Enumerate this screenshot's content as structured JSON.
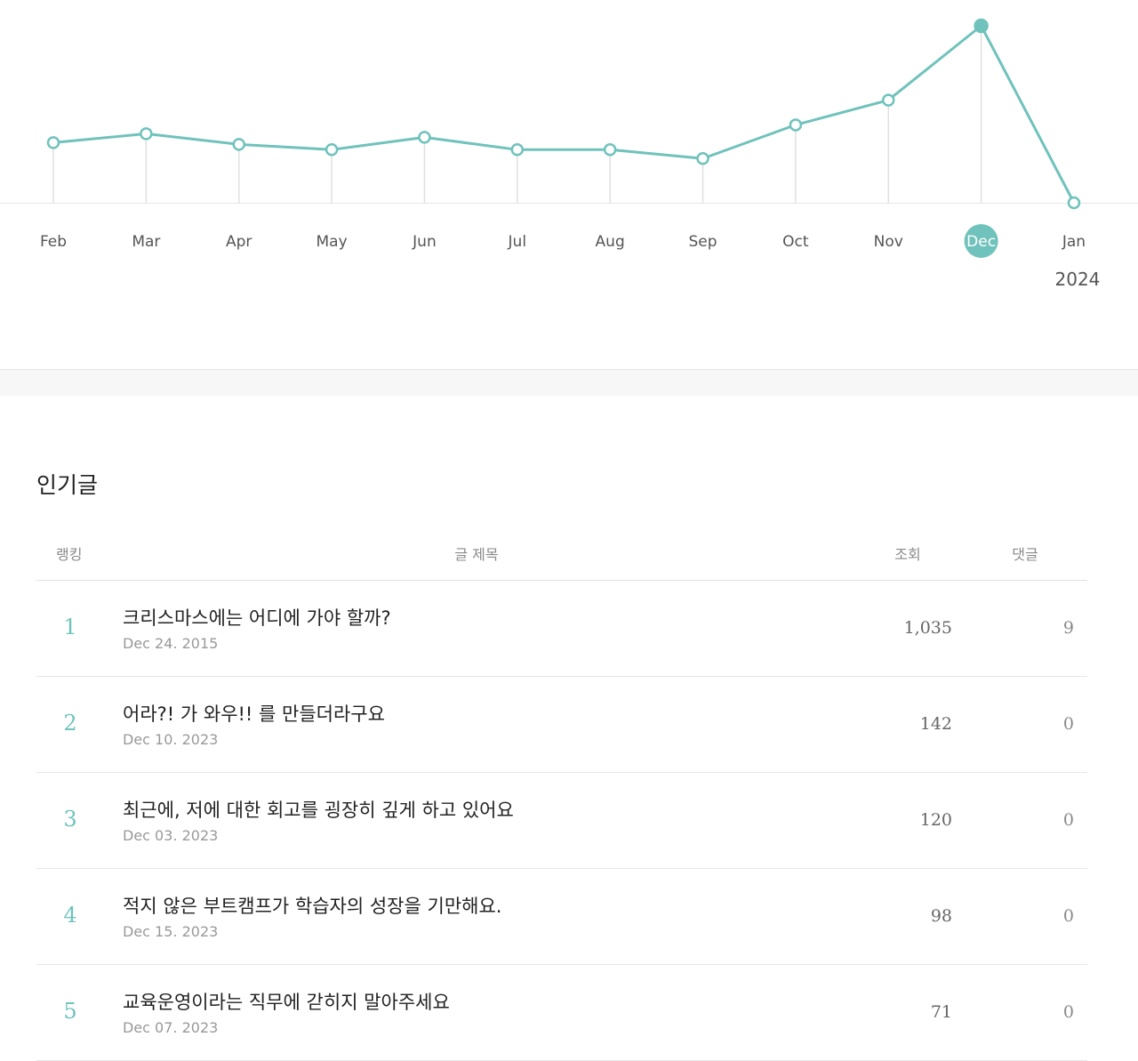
{
  "chart_data": {
    "type": "line",
    "categories": [
      "Feb",
      "Mar",
      "Apr",
      "May",
      "Jun",
      "Jul",
      "Aug",
      "Sep",
      "Oct",
      "Nov",
      "Dec",
      "Jan"
    ],
    "values": [
      34,
      39,
      33,
      30,
      37,
      30,
      30,
      25,
      44,
      58,
      100,
      0
    ],
    "selected_index": 10,
    "year_label": "2024",
    "color": "#70c2bc",
    "grid": false
  },
  "popular": {
    "title": "인기글",
    "headers": {
      "rank": "랭킹",
      "title": "글 제목",
      "views": "조회",
      "comments": "댓글"
    },
    "posts": [
      {
        "rank": "1",
        "title": "크리스마스에는 어디에 가야 할까?",
        "date": "Dec 24. 2015",
        "views": "1,035",
        "comments": "9"
      },
      {
        "rank": "2",
        "title": "어라?! 가 와우!! 를 만들더라구요",
        "date": "Dec 10. 2023",
        "views": "142",
        "comments": "0"
      },
      {
        "rank": "3",
        "title": "최근에, 저에 대한 회고를 굉장히 깊게 하고 있어요",
        "date": "Dec 03. 2023",
        "views": "120",
        "comments": "0"
      },
      {
        "rank": "4",
        "title": "적지 않은 부트캠프가 학습자의 성장을 기만해요.",
        "date": "Dec 15. 2023",
        "views": "98",
        "comments": "0"
      },
      {
        "rank": "5",
        "title": "교육운영이라는 직무에 갇히지 말아주세요",
        "date": "Dec 07. 2023",
        "views": "71",
        "comments": "0"
      }
    ]
  }
}
